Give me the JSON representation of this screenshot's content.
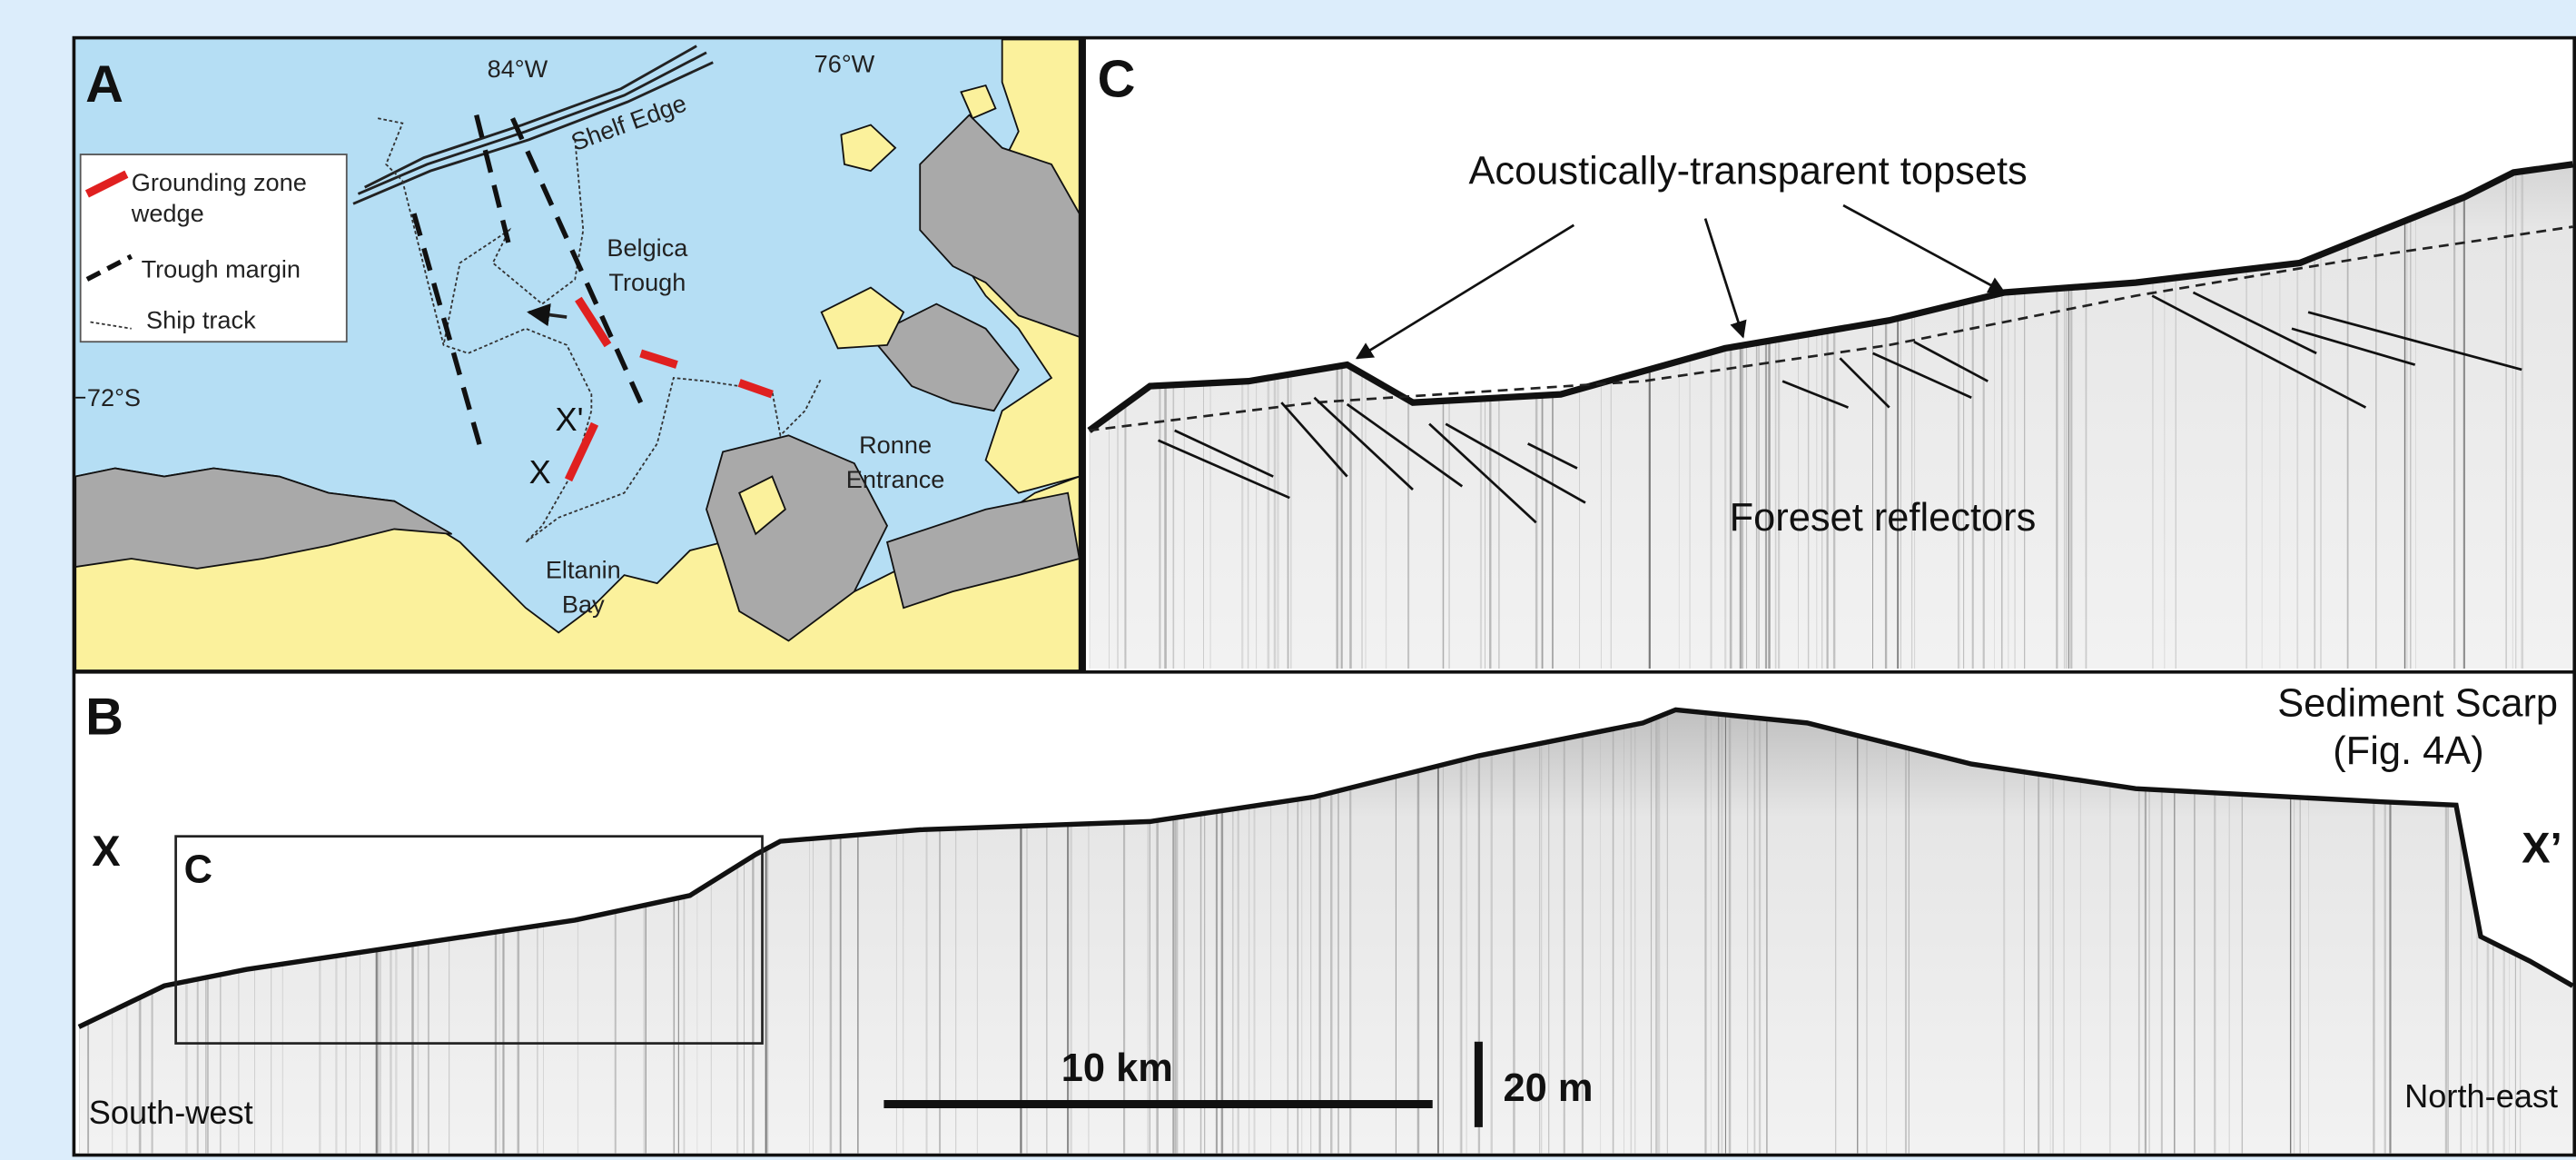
{
  "panel_a": {
    "label": "A",
    "longitude_labels": [
      "84°W",
      "76°W"
    ],
    "latitude_label": "72°S",
    "place_names": {
      "shelf_edge": "Shelf Edge",
      "belgica_trough": [
        "Belgica",
        "Trough"
      ],
      "ronne_entrance": [
        "Ronne",
        "Entrance"
      ],
      "eltanin_bay": [
        "Eltanin",
        "Bay"
      ]
    },
    "profile_ends": [
      "X",
      "X'"
    ],
    "legend": [
      {
        "label": [
          "Grounding zone",
          "wedge"
        ]
      },
      {
        "label": "Trough margin"
      },
      {
        "label": "Ship track"
      }
    ]
  },
  "panel_b": {
    "label": "B",
    "annotation": [
      "Sediment Scarp",
      "(Fig. 4A)"
    ],
    "profile_ends": [
      "X",
      "X’"
    ],
    "inset_label": "C",
    "directions": [
      "South-west",
      "North-east"
    ],
    "horizontal_scale": "10 km",
    "vertical_scale": "20 m"
  },
  "panel_c": {
    "label": "C",
    "annotations": [
      "Acoustically-transparent topsets",
      "Foreset reflectors"
    ]
  }
}
